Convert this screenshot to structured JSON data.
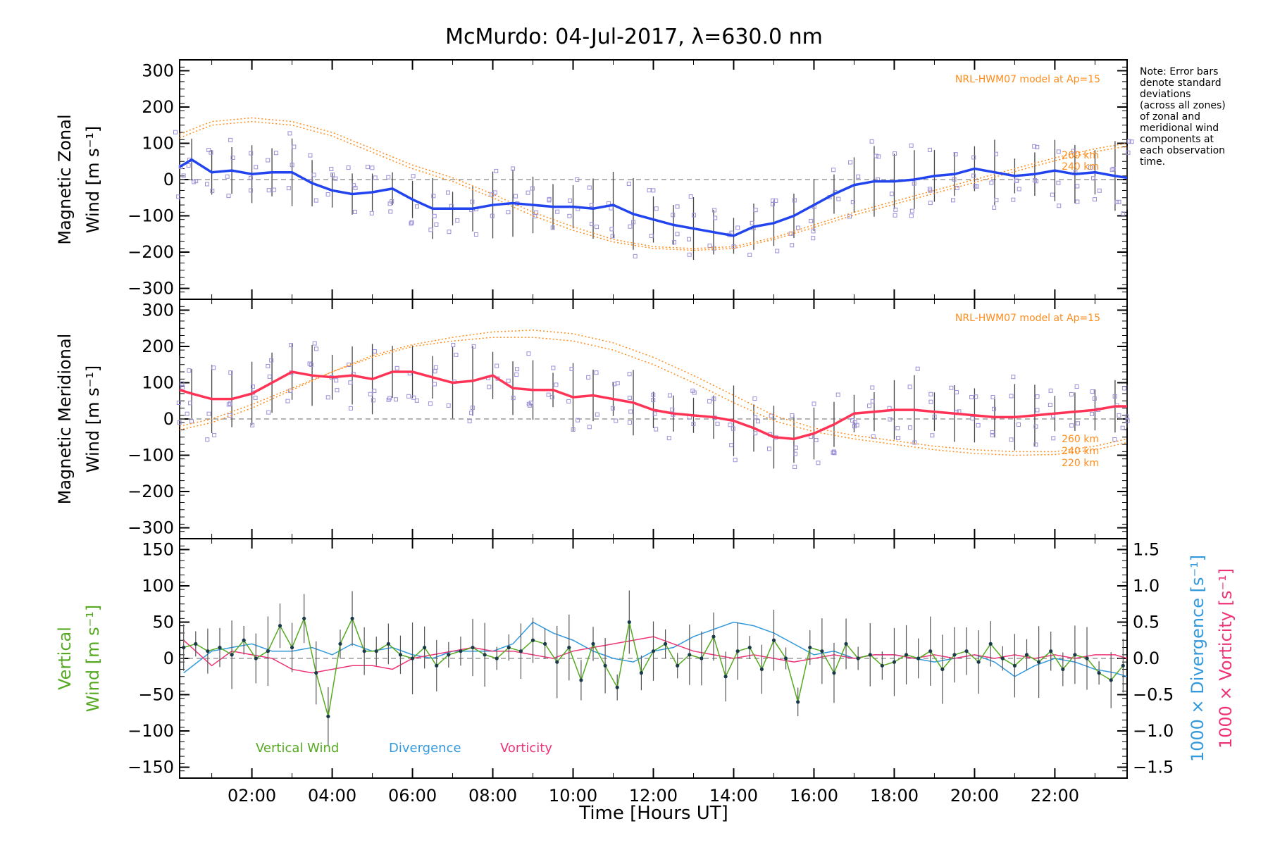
{
  "title": "McMurdo: 04-Jul-2017, λ=630.0 nm",
  "note_lines": [
    "Note: Error bars",
    "denote standard",
    "deviations",
    "(across all zones)",
    "of zonal and",
    "meridional wind",
    "components at",
    "each observation",
    "time."
  ],
  "colors": {
    "zonal_line": "#2244ee",
    "merid_line": "#ff3355",
    "model": "#ff8c1a",
    "scatter": "#9a8fd8",
    "vertical": "#55aa22",
    "divergence": "#3399dd",
    "vorticity": "#ee3377",
    "errbar": "#444444"
  },
  "chart_data": [
    {
      "type": "line",
      "name": "zonal",
      "ylabel_1": "Magnetic Zonal",
      "ylabel_2": "Wind [m s⁻¹]",
      "ylim": [
        -330,
        330
      ],
      "yticks": [
        -300,
        -200,
        -100,
        0,
        100,
        200,
        300
      ],
      "xlim": [
        0.2,
        23.8
      ],
      "model_label": "NRL-HWM07 model at Ap=15",
      "altitude_labels": [
        "260 km",
        "240 km"
      ],
      "series": [
        {
          "name": "Zonal wind",
          "x": [
            0.2,
            0.5,
            1.0,
            1.5,
            2.0,
            2.5,
            3.0,
            3.5,
            4.0,
            4.5,
            5.0,
            5.5,
            6.0,
            6.5,
            7.0,
            7.5,
            8.0,
            8.5,
            9.0,
            9.5,
            10.0,
            10.5,
            11.0,
            11.5,
            12.0,
            12.5,
            13.0,
            13.5,
            14.0,
            14.5,
            15.0,
            15.5,
            16.0,
            16.5,
            17.0,
            17.5,
            18.0,
            18.5,
            19.0,
            19.5,
            20.0,
            20.5,
            21.0,
            21.5,
            22.0,
            22.5,
            23.0,
            23.5,
            23.8
          ],
          "values": [
            35,
            55,
            20,
            25,
            15,
            20,
            20,
            -10,
            -30,
            -40,
            -35,
            -25,
            -55,
            -80,
            -80,
            -80,
            -70,
            -65,
            -70,
            -75,
            -75,
            -80,
            -70,
            -95,
            -110,
            -125,
            -135,
            -145,
            -155,
            -130,
            -120,
            -100,
            -70,
            -40,
            -15,
            -5,
            -5,
            0,
            10,
            15,
            30,
            20,
            10,
            15,
            25,
            15,
            20,
            10,
            5
          ]
        },
        {
          "name": "Model 260 km",
          "x": [
            0.2,
            1,
            2,
            3,
            4,
            5,
            6,
            7,
            8,
            9,
            10,
            11,
            12,
            13,
            14,
            15,
            16,
            17,
            18,
            19,
            20,
            21,
            22,
            23,
            23.8
          ],
          "values": [
            125,
            160,
            170,
            160,
            130,
            85,
            40,
            5,
            -40,
            -90,
            -130,
            -165,
            -185,
            -190,
            -185,
            -160,
            -125,
            -90,
            -60,
            -30,
            0,
            30,
            60,
            85,
            100
          ]
        },
        {
          "name": "Model 240 km",
          "x": [
            0.2,
            1,
            2,
            3,
            4,
            5,
            6,
            7,
            8,
            9,
            10,
            11,
            12,
            13,
            14,
            15,
            16,
            17,
            18,
            19,
            20,
            21,
            22,
            23,
            23.8
          ],
          "values": [
            115,
            150,
            160,
            150,
            120,
            75,
            30,
            -5,
            -50,
            -100,
            -140,
            -172,
            -190,
            -195,
            -190,
            -165,
            -132,
            -98,
            -68,
            -38,
            -8,
            22,
            52,
            77,
            92
          ]
        }
      ]
    },
    {
      "type": "line",
      "name": "meridional",
      "ylabel_1": "Magnetic Meridional",
      "ylabel_2": "Wind [m s⁻¹]",
      "ylim": [
        -330,
        330
      ],
      "yticks": [
        -300,
        -200,
        -100,
        0,
        100,
        200,
        300
      ],
      "xlim": [
        0.2,
        23.8
      ],
      "model_label": "NRL-HWM07 model at Ap=15",
      "altitude_labels": [
        "260 km",
        "240 km",
        "220 km"
      ],
      "series": [
        {
          "name": "Meridional wind",
          "x": [
            0.2,
            0.5,
            1.0,
            1.5,
            2.0,
            2.5,
            3.0,
            3.5,
            4.0,
            4.5,
            5.0,
            5.5,
            6.0,
            6.5,
            7.0,
            7.5,
            8.0,
            8.5,
            9.0,
            9.5,
            10.0,
            10.5,
            11.0,
            11.5,
            12.0,
            12.5,
            13.0,
            13.5,
            14.0,
            14.5,
            15.0,
            15.5,
            16.0,
            16.5,
            17.0,
            17.5,
            18.0,
            18.5,
            19.0,
            19.5,
            20.0,
            20.5,
            21.0,
            21.5,
            22.0,
            22.5,
            23.0,
            23.5,
            23.8
          ],
          "values": [
            80,
            70,
            55,
            55,
            70,
            100,
            130,
            120,
            115,
            120,
            110,
            130,
            130,
            115,
            100,
            105,
            120,
            85,
            80,
            80,
            60,
            65,
            55,
            45,
            25,
            15,
            10,
            5,
            -5,
            -25,
            -50,
            -55,
            -40,
            -15,
            15,
            20,
            25,
            25,
            20,
            15,
            10,
            5,
            5,
            10,
            15,
            20,
            25,
            35,
            35
          ]
        },
        {
          "name": "Model 260 km",
          "x": [
            0.2,
            1,
            2,
            3,
            4,
            5,
            6,
            7,
            8,
            9,
            10,
            11,
            12,
            13,
            14,
            15,
            16,
            17,
            18,
            19,
            20,
            21,
            22,
            23,
            23.8
          ],
          "values": [
            -30,
            -10,
            30,
            80,
            130,
            175,
            205,
            225,
            240,
            245,
            235,
            210,
            170,
            120,
            65,
            10,
            -25,
            -45,
            -60,
            -75,
            -85,
            -90,
            -90,
            -75,
            -55
          ]
        },
        {
          "name": "Model 240 km",
          "x": [
            0.2,
            1,
            2,
            3,
            4,
            5,
            6,
            7,
            8,
            9,
            10,
            11,
            12,
            13,
            14,
            15,
            16,
            17,
            18,
            19,
            20,
            21,
            22,
            23,
            23.8
          ],
          "values": [
            -20,
            0,
            40,
            85,
            130,
            170,
            200,
            215,
            225,
            225,
            215,
            190,
            150,
            100,
            45,
            -5,
            -35,
            -55,
            -70,
            -85,
            -95,
            -100,
            -98,
            -85,
            -65
          ]
        }
      ]
    },
    {
      "type": "line",
      "name": "vertical",
      "ylabel_1": "Vertical",
      "ylabel_2": "Wind [m s⁻¹]",
      "ylabel_right_1": "1000 × Divergence [s⁻¹]",
      "ylabel_right_2": "1000 × Vorticity [s⁻¹]",
      "ylim": [
        -165,
        165
      ],
      "yticks": [
        -150,
        -100,
        -50,
        0,
        50,
        100,
        150
      ],
      "yticks_right": [
        "−1.5",
        "−1.0",
        "−0.5",
        "0.0",
        "0.5",
        "1.0",
        "1.5"
      ],
      "xlim": [
        0.2,
        23.8
      ],
      "xticks": [
        "02:00",
        "04:00",
        "06:00",
        "08:00",
        "10:00",
        "12:00",
        "14:00",
        "16:00",
        "18:00",
        "20:00",
        "22:00"
      ],
      "xlabel": "Time [Hours UT]",
      "legend": [
        "Vertical Wind",
        "Divergence",
        "Vorticity"
      ],
      "series": [
        {
          "name": "Vertical Wind",
          "x": [
            0.3,
            0.6,
            0.9,
            1.2,
            1.5,
            1.8,
            2.1,
            2.4,
            2.7,
            3.0,
            3.3,
            3.6,
            3.9,
            4.2,
            4.5,
            4.8,
            5.1,
            5.4,
            5.7,
            6.0,
            6.3,
            6.6,
            6.9,
            7.2,
            7.5,
            7.8,
            8.1,
            8.4,
            8.7,
            9.0,
            9.3,
            9.6,
            9.9,
            10.2,
            10.5,
            10.8,
            11.1,
            11.4,
            11.7,
            12.0,
            12.3,
            12.6,
            12.9,
            13.2,
            13.5,
            13.8,
            14.1,
            14.4,
            14.7,
            15.0,
            15.3,
            15.6,
            15.9,
            16.2,
            16.5,
            16.8,
            17.1,
            17.4,
            17.7,
            18.0,
            18.3,
            18.6,
            18.9,
            19.2,
            19.5,
            19.8,
            20.1,
            20.4,
            20.7,
            21.0,
            21.3,
            21.6,
            21.9,
            22.2,
            22.5,
            22.8,
            23.1,
            23.4,
            23.7
          ],
          "values": [
            15,
            20,
            10,
            15,
            5,
            25,
            0,
            10,
            45,
            15,
            55,
            -20,
            -80,
            20,
            55,
            10,
            10,
            20,
            5,
            0,
            15,
            -10,
            5,
            10,
            15,
            5,
            0,
            15,
            10,
            25,
            20,
            -5,
            15,
            -30,
            20,
            -10,
            -40,
            50,
            -20,
            10,
            20,
            -10,
            5,
            0,
            30,
            -25,
            10,
            15,
            -15,
            25,
            0,
            -60,
            15,
            10,
            -20,
            20,
            0,
            5,
            -10,
            -5,
            5,
            0,
            10,
            -15,
            5,
            10,
            -5,
            20,
            0,
            -10,
            5,
            -5,
            10,
            -15,
            5,
            0,
            -20,
            -30,
            -10
          ]
        },
        {
          "name": "Divergence",
          "x": [
            0.3,
            1.0,
            1.5,
            2.0,
            2.5,
            3.0,
            3.5,
            4.0,
            4.5,
            5.0,
            5.5,
            6.0,
            6.5,
            7.0,
            7.5,
            8.0,
            8.5,
            9.0,
            9.5,
            10.0,
            10.5,
            11.0,
            11.5,
            12.0,
            12.5,
            13.0,
            13.5,
            14.0,
            14.5,
            15.0,
            15.5,
            16.0,
            16.5,
            17.0,
            17.5,
            18.0,
            18.5,
            19.0,
            19.5,
            20.0,
            20.5,
            21.0,
            21.5,
            22.0,
            22.5,
            23.0,
            23.5,
            23.8
          ],
          "values": [
            -0.2,
            0.1,
            0.15,
            0.2,
            0.1,
            0.1,
            0.15,
            0.05,
            0.2,
            0.1,
            0.15,
            0.05,
            0.0,
            0.1,
            0.1,
            0.1,
            0.2,
            0.5,
            0.35,
            0.25,
            0.1,
            0.0,
            -0.05,
            0.1,
            0.15,
            0.3,
            0.4,
            0.5,
            0.45,
            0.35,
            0.2,
            0.05,
            0.1,
            0.0,
            0.05,
            0.05,
            0.0,
            -0.05,
            0.0,
            0.05,
            -0.05,
            -0.25,
            -0.1,
            0.0,
            -0.05,
            -0.15,
            -0.2,
            -0.25
          ]
        },
        {
          "name": "Vorticity",
          "x": [
            0.3,
            1.0,
            1.5,
            2.0,
            2.5,
            3.0,
            3.5,
            4.0,
            4.5,
            5.0,
            5.5,
            6.0,
            6.5,
            7.0,
            7.5,
            8.0,
            8.5,
            9.0,
            9.5,
            10.0,
            10.5,
            11.0,
            11.5,
            12.0,
            12.5,
            13.0,
            13.5,
            14.0,
            14.5,
            15.0,
            15.5,
            16.0,
            16.5,
            17.0,
            17.5,
            18.0,
            18.5,
            19.0,
            19.5,
            20.0,
            20.5,
            21.0,
            21.5,
            22.0,
            22.5,
            23.0,
            23.5,
            23.8
          ],
          "values": [
            0.25,
            -0.1,
            0.1,
            0.05,
            0.0,
            -0.15,
            -0.2,
            -0.15,
            -0.1,
            -0.1,
            -0.15,
            0.0,
            0.05,
            0.1,
            0.15,
            0.1,
            0.1,
            0.05,
            0.0,
            0.1,
            0.15,
            0.2,
            0.25,
            0.3,
            0.2,
            0.1,
            0.05,
            0.0,
            0.05,
            0.0,
            -0.05,
            0.0,
            0.05,
            0.0,
            0.05,
            0.05,
            0.0,
            0.05,
            0.0,
            0.05,
            0.0,
            0.05,
            0.0,
            0.05,
            0.0,
            0.05,
            0.05,
            0.0
          ]
        }
      ]
    }
  ]
}
